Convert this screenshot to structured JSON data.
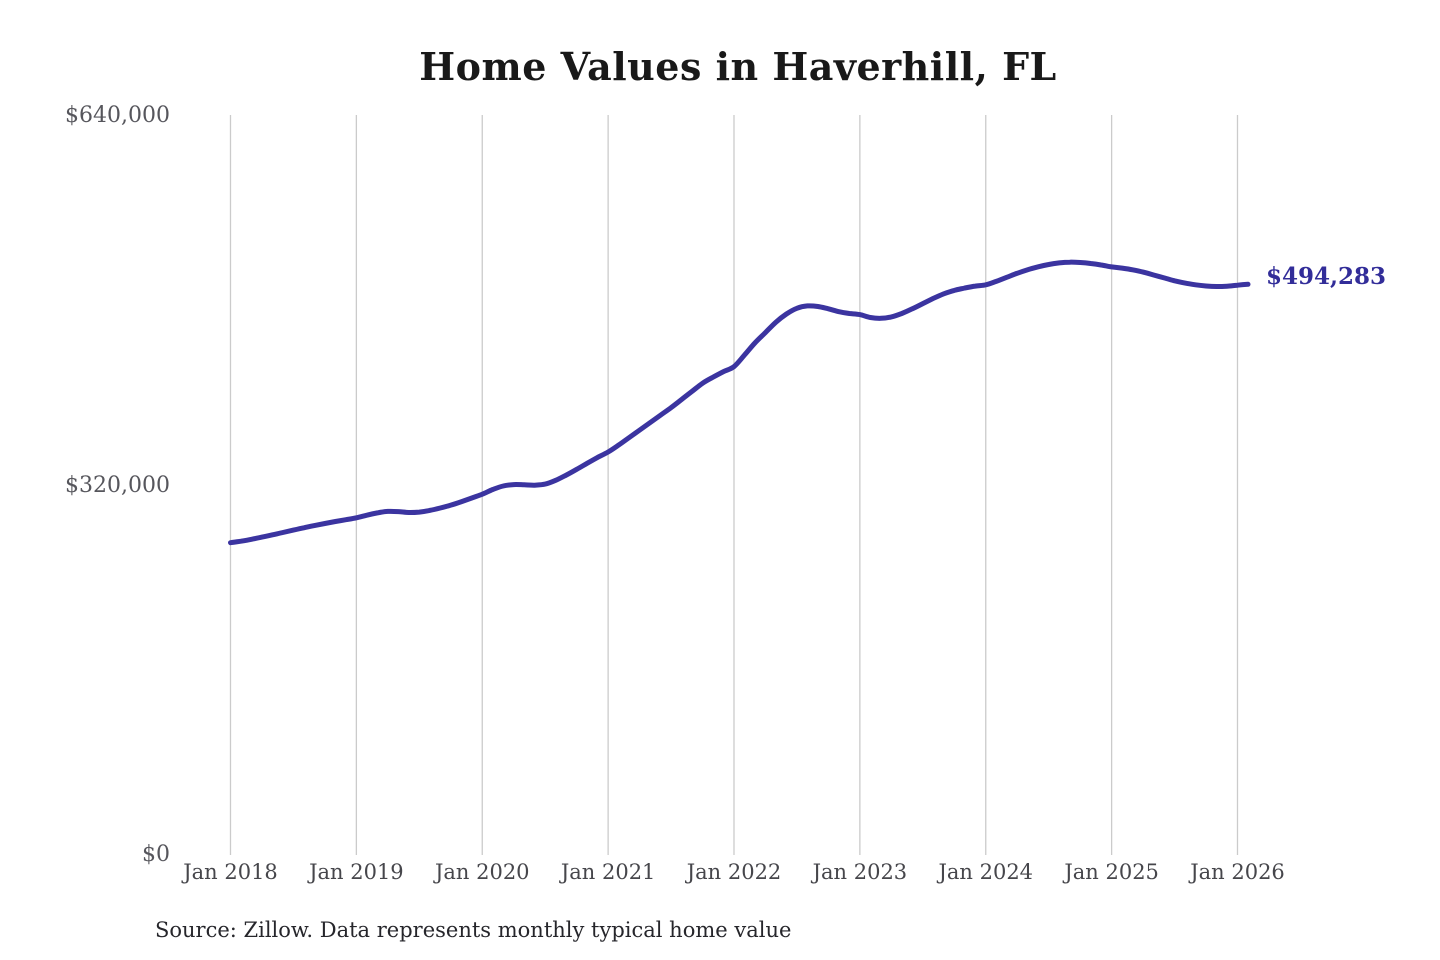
{
  "title": "Home Values in Haverhill, FL",
  "annotation": {
    "latest_value_label": "$494,283"
  },
  "source_note": "Source: Zillow. Data represents monthly typical home value",
  "colors": {
    "line": "#3b34a0",
    "end_label": "#322d99",
    "grid": "#cbcbcb",
    "title": "#191919",
    "y_tick": "#56565c",
    "x_tick": "#46464b",
    "source": "#26262b",
    "background": "#ffffff"
  },
  "chart_data": {
    "type": "line",
    "title": "Home Values in Haverhill, FL",
    "series_name": "Monthly typical home value (ZHVI)",
    "unit": "USD",
    "interval": "monthly",
    "start_month": "Jan 2018",
    "end_month": "Feb 2026",
    "latest_value": 494283,
    "values": [
      270500,
      271800,
      273400,
      275300,
      277300,
      279300,
      281400,
      283400,
      285300,
      287100,
      288800,
      290400,
      292000,
      294300,
      296300,
      297600,
      297400,
      296600,
      297000,
      298400,
      300500,
      303000,
      306000,
      309200,
      312500,
      316500,
      319600,
      320800,
      320600,
      320300,
      321200,
      324500,
      329000,
      334000,
      339200,
      344300,
      349000,
      355000,
      361500,
      368000,
      374500,
      381000,
      387500,
      394500,
      401500,
      408500,
      413800,
      418600,
      423000,
      433000,
      443500,
      452500,
      461500,
      468500,
      473500,
      475500,
      475000,
      473000,
      470500,
      469000,
      468000,
      465500,
      464800,
      466000,
      469000,
      473000,
      477500,
      482000,
      486000,
      489000,
      491000,
      492700,
      493800,
      496800,
      500300,
      503800,
      506900,
      509400,
      511400,
      512800,
      513400,
      513100,
      512300,
      511000,
      509300,
      508300,
      506800,
      504800,
      502300,
      499800,
      497300,
      495300,
      493800,
      492800,
      492300,
      492600,
      493500,
      494283
    ],
    "x_ticks": [
      "Jan 2018",
      "Jan 2019",
      "Jan 2020",
      "Jan 2021",
      "Jan 2022",
      "Jan 2023",
      "Jan 2024",
      "Jan 2025",
      "Jan 2026"
    ],
    "y_ticks": [
      {
        "value": 0,
        "label": "$0"
      },
      {
        "value": 320000,
        "label": "$320,000"
      },
      {
        "value": 640000,
        "label": "$640,000"
      }
    ],
    "ylim": [
      0,
      640000
    ],
    "grid": "vertical-only",
    "legend": false
  }
}
